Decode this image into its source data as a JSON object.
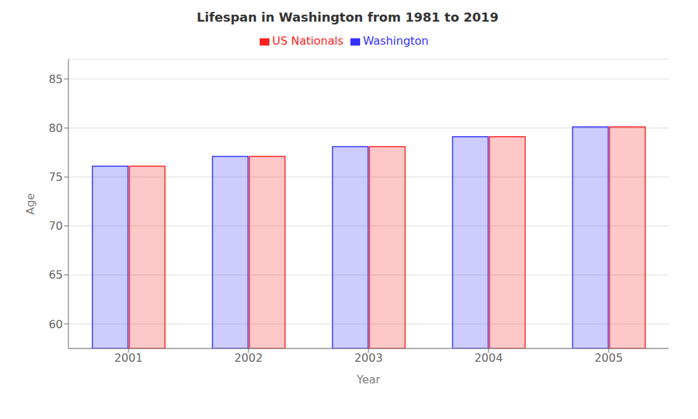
{
  "chart_data": {
    "type": "bar",
    "title": "Lifespan in Washington from 1981 to 2019",
    "x_label": "Year",
    "y_label": "Age",
    "categories": [
      "2001",
      "2002",
      "2003",
      "2004",
      "2005"
    ],
    "series": [
      {
        "name": "Washington",
        "color": "#3333ff",
        "values": [
          76.1,
          77.1,
          78.1,
          79.1,
          80.1
        ]
      },
      {
        "name": "US Nationals",
        "color": "#ff2222",
        "values": [
          76.1,
          77.1,
          78.1,
          79.1,
          80.1
        ]
      }
    ],
    "ylim": [
      57.5,
      87
    ],
    "yticks": [
      60,
      65,
      70,
      75,
      80,
      85
    ],
    "grid": true,
    "legend": "top"
  }
}
